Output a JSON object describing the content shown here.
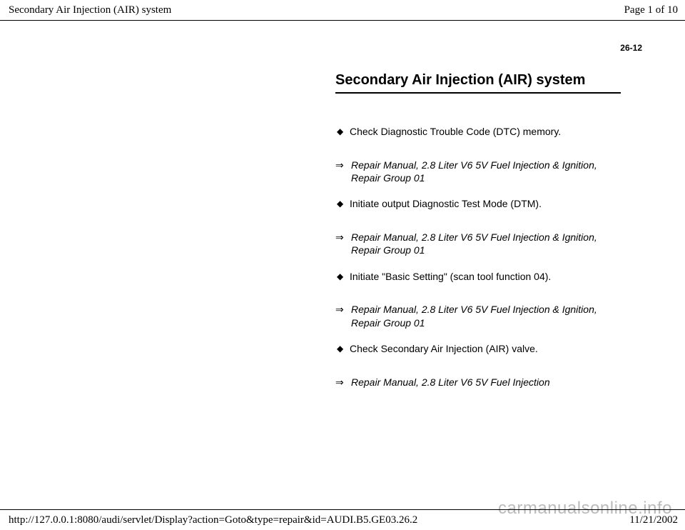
{
  "header": {
    "title": "Secondary Air Injection (AIR) system",
    "page_indicator": "Page 1 of 10"
  },
  "page_number_top": "26-12",
  "title": "Secondary Air Injection (AIR) system",
  "items": [
    {
      "type": "bullet",
      "text": "Check Diagnostic Trouble Code (DTC) memory."
    },
    {
      "type": "ref",
      "text": "Repair Manual, 2.8 Liter V6 5V Fuel Injection & Ignition, Repair Group 01"
    },
    {
      "type": "bullet",
      "text": "Initiate output Diagnostic Test Mode (DTM)."
    },
    {
      "type": "ref",
      "text": "Repair Manual, 2.8 Liter V6 5V Fuel Injection & Ignition, Repair Group 01"
    },
    {
      "type": "bullet",
      "text": "Initiate \"Basic Setting\" (scan tool function 04)."
    },
    {
      "type": "ref",
      "text": "Repair Manual, 2.8 Liter V6 5V Fuel Injection & Ignition, Repair Group 01"
    },
    {
      "type": "bullet",
      "text": "Check Secondary Air Injection (AIR) valve."
    },
    {
      "type": "ref",
      "text": "Repair Manual, 2.8 Liter V6 5V Fuel Injection"
    }
  ],
  "footer": {
    "url": "http://127.0.0.1:8080/audi/servlet/Display?action=Goto&type=repair&id=AUDI.B5.GE03.26.2",
    "date": "11/21/2002"
  },
  "watermark": "carmanualsonline.info",
  "glyphs": {
    "bullet": "◆",
    "ref": "⇒"
  },
  "colors": {
    "text": "#000000",
    "background": "#ffffff",
    "watermark": "rgba(120,120,120,0.5)"
  }
}
